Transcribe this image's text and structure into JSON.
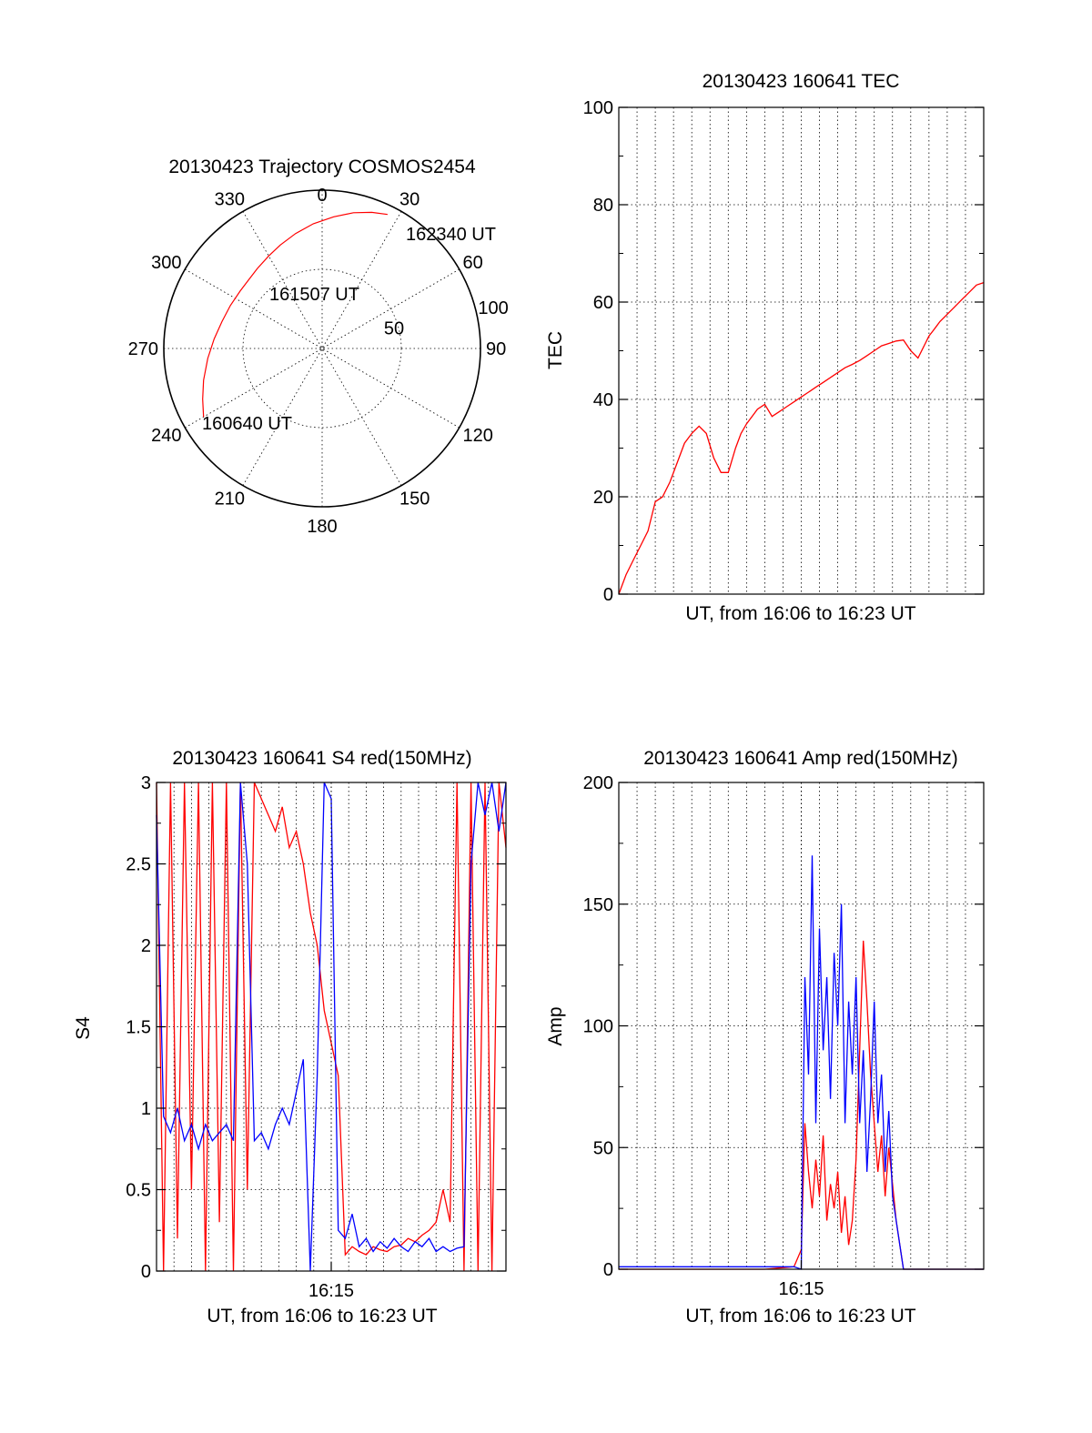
{
  "chart_data": [
    {
      "type": "polar",
      "title": "20130423 Trajectory COSMOS2454",
      "azimuth_labels": [
        "0",
        "30",
        "60",
        "90",
        "120",
        "150",
        "180",
        "210",
        "240",
        "270",
        "300",
        "330"
      ],
      "azimuth_values": [
        0,
        30,
        60,
        90,
        120,
        150,
        180,
        210,
        240,
        270,
        300,
        330
      ],
      "radial_labels": [
        "50",
        "100"
      ],
      "radial_values": [
        50,
        100
      ],
      "annotations": [
        "162340 UT",
        "161507 UT",
        "160640 UT"
      ],
      "trajectory": {
        "color": "#ff0000",
        "points": [
          {
            "az": 240.0,
            "r": 86.5
          },
          {
            "az": 247.0,
            "r": 82.0
          },
          {
            "az": 255.0,
            "r": 77.5
          },
          {
            "az": 265.0,
            "r": 72.5
          },
          {
            "az": 275.0,
            "r": 68.5
          },
          {
            "az": 285.0,
            "r": 65.5
          },
          {
            "az": 295.0,
            "r": 64.0
          },
          {
            "az": 305.0,
            "r": 63.2
          },
          {
            "az": 313.0,
            "r": 63.5
          },
          {
            "az": 321.0,
            "r": 65.0
          },
          {
            "az": 330.0,
            "r": 67.5
          },
          {
            "az": 338.0,
            "r": 70.5
          },
          {
            "az": 347.0,
            "r": 74.5
          },
          {
            "az": 356.0,
            "r": 79.0
          },
          {
            "az": 5.0,
            "r": 83.5
          },
          {
            "az": 13.0,
            "r": 88.0
          },
          {
            "az": 20.0,
            "r": 91.5
          },
          {
            "az": 26.0,
            "r": 94.2
          }
        ]
      }
    },
    {
      "type": "line",
      "title": "20130423 160641 TEC",
      "xlabel": "UT, from 16:06 to 16:23 UT",
      "ylabel": "TEC",
      "ylim": [
        0,
        100
      ],
      "yticks": [
        "0",
        "20",
        "40",
        "60",
        "80",
        "100"
      ],
      "ytick_values": [
        0,
        20,
        40,
        60,
        80,
        100
      ],
      "xlim": [
        0,
        1
      ],
      "grid": true,
      "series": [
        {
          "color": "#ff0000",
          "x": [
            0.0,
            0.02,
            0.04,
            0.06,
            0.08,
            0.1,
            0.12,
            0.14,
            0.16,
            0.18,
            0.2,
            0.22,
            0.24,
            0.26,
            0.28,
            0.3,
            0.32,
            0.335,
            0.35,
            0.37,
            0.38,
            0.4,
            0.42,
            0.44,
            0.46,
            0.48,
            0.5,
            0.52,
            0.54,
            0.56,
            0.58,
            0.6,
            0.62,
            0.64,
            0.66,
            0.68,
            0.7,
            0.72,
            0.74,
            0.76,
            0.78,
            0.8,
            0.82,
            0.84,
            0.85,
            0.86,
            0.87,
            0.88,
            0.9,
            0.92,
            0.94,
            0.96,
            0.98,
            1.0
          ],
          "y": [
            0.0,
            4.0,
            7.0,
            10.0,
            13.0,
            19.0,
            20.0,
            23.0,
            27.0,
            31.0,
            33.0,
            34.5,
            33.0,
            28.0,
            25.0,
            25.0,
            30.0,
            33.0,
            35.0,
            37.0,
            38.0,
            39.0,
            36.5,
            37.5,
            38.5,
            39.5,
            40.5,
            41.5,
            42.5,
            43.5,
            44.5,
            45.5,
            46.5,
            47.2,
            48.0,
            49.0,
            50.0,
            51.0,
            51.5,
            52.0,
            52.2,
            50.0,
            48.5,
            51.5,
            53.0,
            54.0,
            55.0,
            56.0,
            57.5,
            59.0,
            60.5,
            62.0,
            63.5,
            64.0
          ]
        }
      ]
    },
    {
      "type": "line",
      "title": "20130423 160641 S4 red(150MHz)",
      "xlabel": "UT, from 16:06 to 16:23 UT",
      "ylabel": "S4",
      "ylim": [
        0,
        3
      ],
      "yticks": [
        "0",
        "0.5",
        "1",
        "1.5",
        "2",
        "2.5",
        "3"
      ],
      "ytick_values": [
        0,
        0.5,
        1,
        1.5,
        2,
        2.5,
        3
      ],
      "xticks": [
        "16:15"
      ],
      "xtick_values": [
        0.5
      ],
      "xlim": [
        0,
        1
      ],
      "grid": true,
      "series": [
        {
          "color": "#ff0000",
          "x": [
            0.0,
            0.02,
            0.04,
            0.06,
            0.08,
            0.1,
            0.12,
            0.14,
            0.16,
            0.18,
            0.2,
            0.22,
            0.24,
            0.26,
            0.28,
            0.3,
            0.32,
            0.34,
            0.36,
            0.38,
            0.4,
            0.42,
            0.44,
            0.46,
            0.48,
            0.5,
            0.52,
            0.54,
            0.56,
            0.58,
            0.6,
            0.62,
            0.64,
            0.66,
            0.68,
            0.7,
            0.72,
            0.74,
            0.76,
            0.78,
            0.8,
            0.82,
            0.84,
            0.86,
            0.88,
            0.9,
            0.92,
            0.94,
            0.96,
            0.98,
            1.0
          ],
          "y": [
            3.0,
            0.0,
            3.0,
            0.2,
            3.0,
            0.5,
            3.0,
            0.0,
            3.0,
            0.3,
            3.0,
            0.0,
            3.0,
            0.5,
            3.0,
            2.9,
            2.8,
            2.7,
            2.85,
            2.6,
            2.7,
            2.5,
            2.2,
            2.0,
            1.6,
            1.4,
            1.2,
            0.1,
            0.15,
            0.12,
            0.1,
            0.15,
            0.13,
            0.12,
            0.15,
            0.16,
            0.2,
            0.18,
            0.22,
            0.25,
            0.3,
            0.5,
            0.3,
            3.0,
            0.0,
            3.0,
            0.0,
            3.0,
            0.0,
            3.0,
            2.6
          ]
        },
        {
          "color": "#0000ff",
          "x": [
            0.0,
            0.02,
            0.04,
            0.06,
            0.08,
            0.1,
            0.12,
            0.14,
            0.16,
            0.18,
            0.2,
            0.22,
            0.24,
            0.26,
            0.28,
            0.3,
            0.32,
            0.34,
            0.36,
            0.38,
            0.4,
            0.42,
            0.44,
            0.46,
            0.48,
            0.5,
            0.52,
            0.54,
            0.56,
            0.58,
            0.6,
            0.62,
            0.64,
            0.66,
            0.68,
            0.7,
            0.72,
            0.74,
            0.76,
            0.78,
            0.8,
            0.82,
            0.84,
            0.86,
            0.88,
            0.9,
            0.92,
            0.94,
            0.96,
            0.98,
            1.0
          ],
          "y": [
            2.8,
            0.95,
            0.85,
            1.0,
            0.8,
            0.9,
            0.75,
            0.9,
            0.8,
            0.85,
            0.9,
            0.8,
            3.0,
            2.5,
            0.8,
            0.85,
            0.75,
            0.9,
            1.0,
            0.9,
            1.1,
            1.3,
            0.0,
            1.2,
            3.0,
            2.9,
            0.25,
            0.2,
            0.35,
            0.15,
            0.2,
            0.12,
            0.18,
            0.14,
            0.2,
            0.15,
            0.12,
            0.18,
            0.15,
            0.2,
            0.12,
            0.15,
            0.12,
            0.14,
            0.15,
            2.5,
            3.0,
            2.8,
            3.0,
            2.7,
            3.0
          ]
        }
      ]
    },
    {
      "type": "line",
      "title": "20130423 160641 Amp red(150MHz)",
      "xlabel": "UT, from 16:06 to 16:23 UT",
      "ylabel": "Amp",
      "ylim": [
        0,
        200
      ],
      "yticks": [
        "0",
        "50",
        "100",
        "150",
        "200"
      ],
      "ytick_values": [
        0,
        50,
        100,
        150,
        200
      ],
      "xticks": [
        "16:15"
      ],
      "xtick_values": [
        0.5
      ],
      "xlim": [
        0,
        1
      ],
      "grid": true,
      "series": [
        {
          "color": "#ff0000",
          "x": [
            0.0,
            0.1,
            0.2,
            0.3,
            0.4,
            0.48,
            0.5,
            0.51,
            0.52,
            0.53,
            0.54,
            0.55,
            0.56,
            0.57,
            0.58,
            0.59,
            0.6,
            0.61,
            0.62,
            0.63,
            0.64,
            0.65,
            0.66,
            0.67,
            0.68,
            0.69,
            0.7,
            0.71,
            0.72,
            0.73,
            0.74,
            0.75,
            0.76,
            0.78,
            0.8,
            0.85,
            0.9,
            0.95,
            1.0
          ],
          "y": [
            0,
            0,
            0,
            0,
            0,
            1,
            8,
            60,
            40,
            25,
            45,
            30,
            55,
            20,
            35,
            25,
            40,
            15,
            30,
            10,
            20,
            45,
            90,
            135,
            110,
            80,
            60,
            40,
            55,
            30,
            50,
            35,
            20,
            0,
            0,
            0,
            0,
            0,
            0
          ]
        },
        {
          "color": "#0000ff",
          "x": [
            0.0,
            0.1,
            0.2,
            0.3,
            0.4,
            0.48,
            0.5,
            0.51,
            0.52,
            0.53,
            0.54,
            0.55,
            0.56,
            0.57,
            0.58,
            0.59,
            0.6,
            0.61,
            0.62,
            0.63,
            0.64,
            0.65,
            0.66,
            0.67,
            0.68,
            0.69,
            0.7,
            0.71,
            0.72,
            0.73,
            0.74,
            0.75,
            0.76,
            0.78,
            0.8,
            0.85,
            0.9,
            0.95,
            1.0
          ],
          "y": [
            1,
            1,
            1,
            1,
            1,
            1,
            0,
            120,
            80,
            170,
            60,
            140,
            90,
            120,
            70,
            130,
            100,
            150,
            60,
            110,
            80,
            120,
            60,
            90,
            40,
            70,
            110,
            60,
            80,
            40,
            65,
            30,
            20,
            0,
            0,
            0,
            0,
            0,
            0
          ]
        }
      ]
    }
  ]
}
